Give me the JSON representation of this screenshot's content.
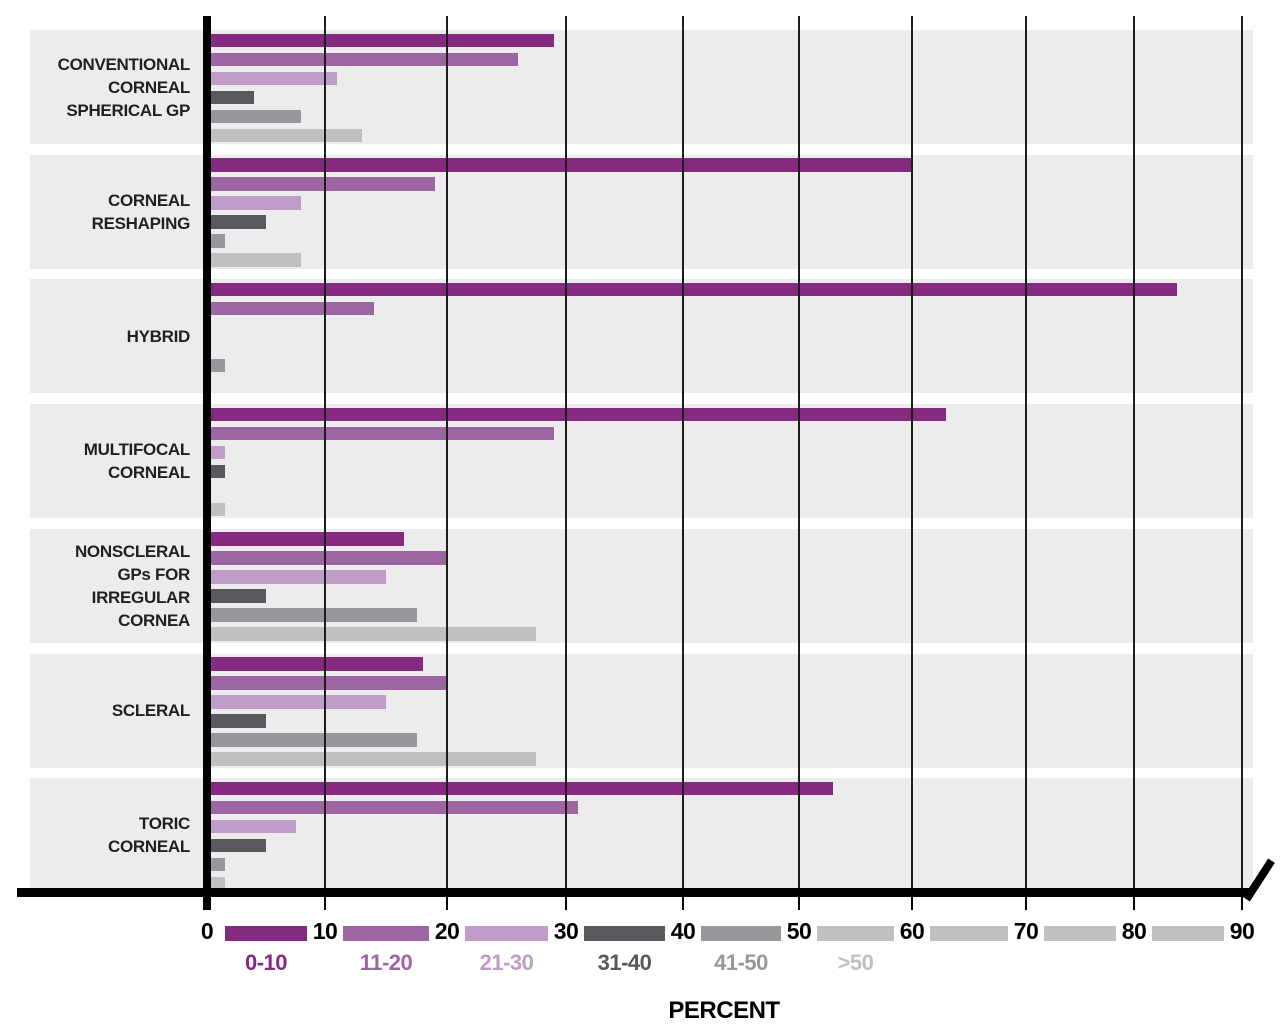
{
  "chart_data": {
    "type": "bar",
    "orientation": "horizontal",
    "title": "",
    "xlabel": "PERCENT",
    "xlim": [
      0,
      90
    ],
    "x_ticks": [
      0,
      10,
      20,
      30,
      40,
      50,
      60,
      70,
      80,
      90
    ],
    "grid": true,
    "legend_position": "bottom",
    "axis_break_at_right_end": true,
    "categories": [
      "CONVENTIONAL CORNEAL SPHERICAL GP",
      "CORNEAL RESHAPING",
      "HYBRID",
      "MULTIFOCAL CORNEAL",
      "NONSCLERAL GPs FOR IRREGULAR CORNEA",
      "SCLERAL",
      "TORIC CORNEAL"
    ],
    "category_lines": [
      [
        "CONVENTIONAL",
        "CORNEAL",
        "SPHERICAL GP"
      ],
      [
        "CORNEAL",
        "RESHAPING"
      ],
      [
        "HYBRID"
      ],
      [
        "MULTIFOCAL",
        "CORNEAL"
      ],
      [
        "NONSCLERAL",
        "GPs FOR",
        "IRREGULAR",
        "CORNEA"
      ],
      [
        "SCLERAL"
      ],
      [
        "TORIC",
        "CORNEAL"
      ]
    ],
    "series": [
      {
        "name": "0-10",
        "color": "#862a80",
        "values": [
          29,
          60,
          84,
          63,
          16.5,
          18,
          53
        ]
      },
      {
        "name": "11-20",
        "color": "#9d66a3",
        "values": [
          26,
          19,
          14,
          29,
          20,
          20,
          31
        ]
      },
      {
        "name": "21-30",
        "color": "#c09dc8",
        "values": [
          11,
          8,
          0,
          1.5,
          15,
          15,
          7.5
        ]
      },
      {
        "name": "31-40",
        "color": "#58595c",
        "values": [
          4,
          5,
          0,
          1.5,
          5,
          5,
          5
        ]
      },
      {
        "name": "41-50",
        "color": "#96989b",
        "values": [
          8,
          1.5,
          1.5,
          0,
          17.5,
          17.5,
          1.5
        ]
      },
      {
        "name": ">50",
        "color": "#bfc0c2",
        "values": [
          13,
          8,
          0,
          1.5,
          27.5,
          27.5,
          1.5
        ]
      }
    ],
    "colors": {
      "band_background": "#ececed",
      "gridline": "#1d1d1d",
      "axis": "#000000",
      "category_text": "#231f20",
      "tick_text": "#000000"
    }
  }
}
